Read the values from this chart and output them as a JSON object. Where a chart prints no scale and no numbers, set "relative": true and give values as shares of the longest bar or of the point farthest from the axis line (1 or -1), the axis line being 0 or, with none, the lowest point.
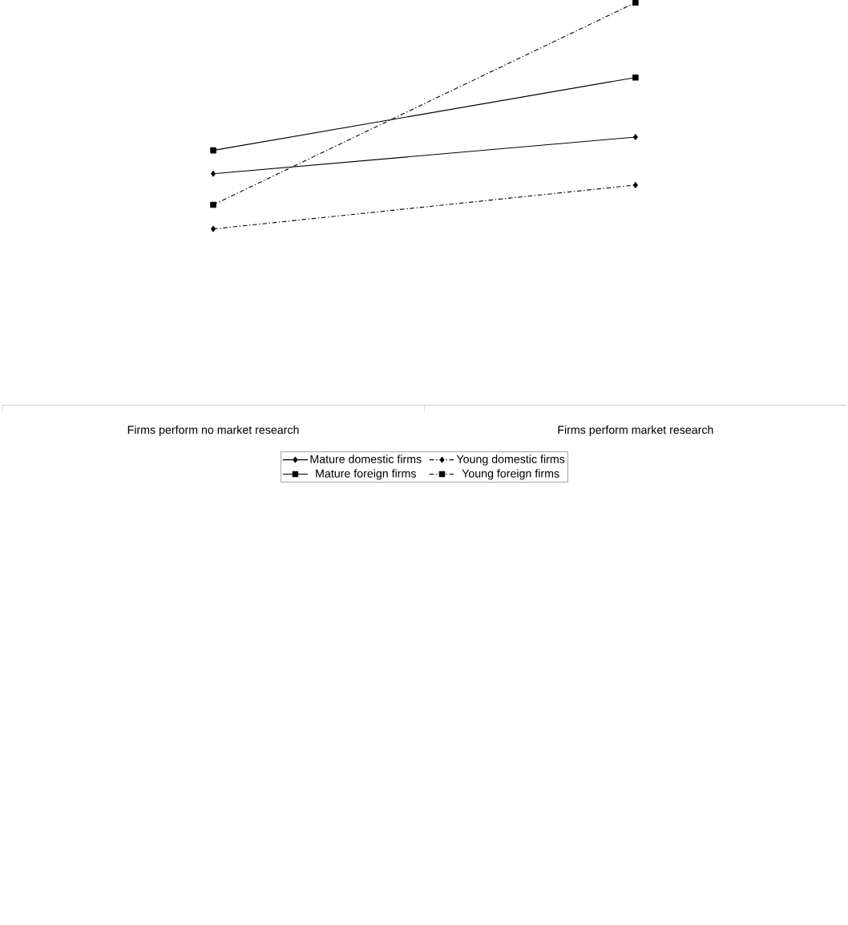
{
  "chart_data": {
    "type": "line",
    "relative": true,
    "legend": "bottom",
    "categories": [
      "Firms perform no market research",
      "Firms perform market research"
    ],
    "series": [
      {
        "name": "Mature domestic firms",
        "color": "#000000",
        "marker": "diamond",
        "line_style": "solid",
        "values": [
          0.575,
          0.666
        ]
      },
      {
        "name": "Young domestic firms",
        "color": "#000000",
        "marker": "diamond",
        "line_style": "dashdot",
        "values": [
          0.438,
          0.547
        ]
      },
      {
        "name": "Mature foreign firms",
        "color": "#000000",
        "marker": "square",
        "line_style": "solid",
        "values": [
          0.633,
          0.814
        ]
      },
      {
        "name": "Young foreign firms",
        "color": "#000000",
        "marker": "square",
        "line_style": "dashdot",
        "values": [
          0.498,
          1.0
        ]
      }
    ]
  }
}
